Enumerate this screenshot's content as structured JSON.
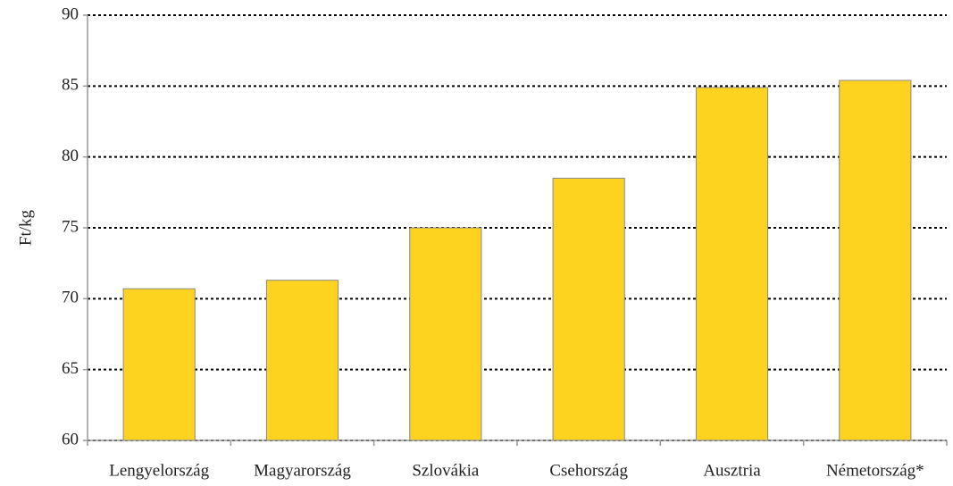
{
  "chart_data": {
    "type": "bar",
    "y_label": "Ft/kg",
    "categories": [
      "Lengyelország",
      "Magyarország",
      "Szlovákia",
      "Csehország",
      "Ausztria",
      "Németország*"
    ],
    "values": [
      70.7,
      71.3,
      75.0,
      78.5,
      84.9,
      85.4
    ],
    "color": "#fdd320",
    "ylim": [
      60,
      90
    ],
    "yticks": [
      60,
      65,
      70,
      75,
      80,
      85,
      90
    ],
    "grid": true
  }
}
